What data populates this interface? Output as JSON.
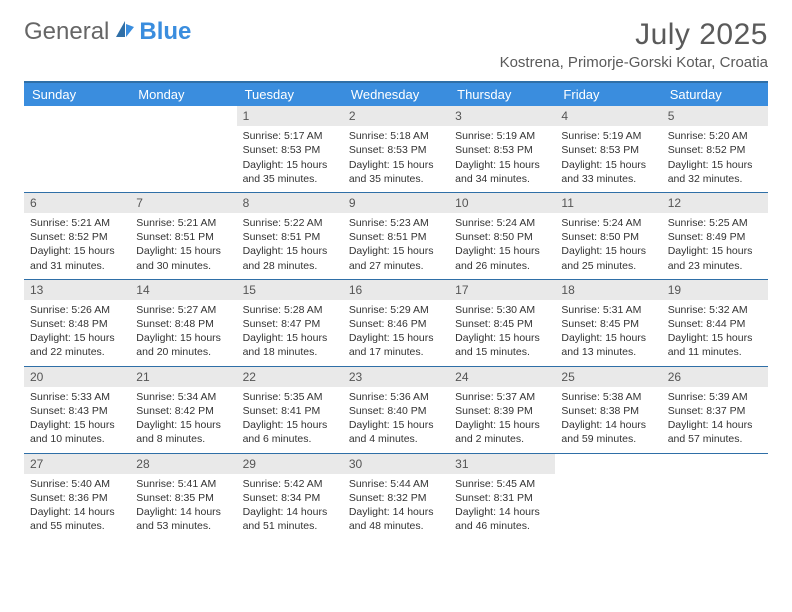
{
  "brand": {
    "part1": "General",
    "part2": "Blue"
  },
  "title": "July 2025",
  "location": "Kostrena, Primorje-Gorski Kotar, Croatia",
  "colors": {
    "header_bg": "#3a8dde",
    "header_text": "#ffffff",
    "rule": "#2f6fa7",
    "daynum_bg": "#e9e9e9",
    "body_text": "#333333",
    "title_text": "#5a5a5a"
  },
  "day_names": [
    "Sunday",
    "Monday",
    "Tuesday",
    "Wednesday",
    "Thursday",
    "Friday",
    "Saturday"
  ],
  "weeks": [
    [
      null,
      null,
      {
        "n": "1",
        "sunrise": "5:17 AM",
        "sunset": "8:53 PM",
        "daylight": "15 hours and 35 minutes."
      },
      {
        "n": "2",
        "sunrise": "5:18 AM",
        "sunset": "8:53 PM",
        "daylight": "15 hours and 35 minutes."
      },
      {
        "n": "3",
        "sunrise": "5:19 AM",
        "sunset": "8:53 PM",
        "daylight": "15 hours and 34 minutes."
      },
      {
        "n": "4",
        "sunrise": "5:19 AM",
        "sunset": "8:53 PM",
        "daylight": "15 hours and 33 minutes."
      },
      {
        "n": "5",
        "sunrise": "5:20 AM",
        "sunset": "8:52 PM",
        "daylight": "15 hours and 32 minutes."
      }
    ],
    [
      {
        "n": "6",
        "sunrise": "5:21 AM",
        "sunset": "8:52 PM",
        "daylight": "15 hours and 31 minutes."
      },
      {
        "n": "7",
        "sunrise": "5:21 AM",
        "sunset": "8:51 PM",
        "daylight": "15 hours and 30 minutes."
      },
      {
        "n": "8",
        "sunrise": "5:22 AM",
        "sunset": "8:51 PM",
        "daylight": "15 hours and 28 minutes."
      },
      {
        "n": "9",
        "sunrise": "5:23 AM",
        "sunset": "8:51 PM",
        "daylight": "15 hours and 27 minutes."
      },
      {
        "n": "10",
        "sunrise": "5:24 AM",
        "sunset": "8:50 PM",
        "daylight": "15 hours and 26 minutes."
      },
      {
        "n": "11",
        "sunrise": "5:24 AM",
        "sunset": "8:50 PM",
        "daylight": "15 hours and 25 minutes."
      },
      {
        "n": "12",
        "sunrise": "5:25 AM",
        "sunset": "8:49 PM",
        "daylight": "15 hours and 23 minutes."
      }
    ],
    [
      {
        "n": "13",
        "sunrise": "5:26 AM",
        "sunset": "8:48 PM",
        "daylight": "15 hours and 22 minutes."
      },
      {
        "n": "14",
        "sunrise": "5:27 AM",
        "sunset": "8:48 PM",
        "daylight": "15 hours and 20 minutes."
      },
      {
        "n": "15",
        "sunrise": "5:28 AM",
        "sunset": "8:47 PM",
        "daylight": "15 hours and 18 minutes."
      },
      {
        "n": "16",
        "sunrise": "5:29 AM",
        "sunset": "8:46 PM",
        "daylight": "15 hours and 17 minutes."
      },
      {
        "n": "17",
        "sunrise": "5:30 AM",
        "sunset": "8:45 PM",
        "daylight": "15 hours and 15 minutes."
      },
      {
        "n": "18",
        "sunrise": "5:31 AM",
        "sunset": "8:45 PM",
        "daylight": "15 hours and 13 minutes."
      },
      {
        "n": "19",
        "sunrise": "5:32 AM",
        "sunset": "8:44 PM",
        "daylight": "15 hours and 11 minutes."
      }
    ],
    [
      {
        "n": "20",
        "sunrise": "5:33 AM",
        "sunset": "8:43 PM",
        "daylight": "15 hours and 10 minutes."
      },
      {
        "n": "21",
        "sunrise": "5:34 AM",
        "sunset": "8:42 PM",
        "daylight": "15 hours and 8 minutes."
      },
      {
        "n": "22",
        "sunrise": "5:35 AM",
        "sunset": "8:41 PM",
        "daylight": "15 hours and 6 minutes."
      },
      {
        "n": "23",
        "sunrise": "5:36 AM",
        "sunset": "8:40 PM",
        "daylight": "15 hours and 4 minutes."
      },
      {
        "n": "24",
        "sunrise": "5:37 AM",
        "sunset": "8:39 PM",
        "daylight": "15 hours and 2 minutes."
      },
      {
        "n": "25",
        "sunrise": "5:38 AM",
        "sunset": "8:38 PM",
        "daylight": "14 hours and 59 minutes."
      },
      {
        "n": "26",
        "sunrise": "5:39 AM",
        "sunset": "8:37 PM",
        "daylight": "14 hours and 57 minutes."
      }
    ],
    [
      {
        "n": "27",
        "sunrise": "5:40 AM",
        "sunset": "8:36 PM",
        "daylight": "14 hours and 55 minutes."
      },
      {
        "n": "28",
        "sunrise": "5:41 AM",
        "sunset": "8:35 PM",
        "daylight": "14 hours and 53 minutes."
      },
      {
        "n": "29",
        "sunrise": "5:42 AM",
        "sunset": "8:34 PM",
        "daylight": "14 hours and 51 minutes."
      },
      {
        "n": "30",
        "sunrise": "5:44 AM",
        "sunset": "8:32 PM",
        "daylight": "14 hours and 48 minutes."
      },
      {
        "n": "31",
        "sunrise": "5:45 AM",
        "sunset": "8:31 PM",
        "daylight": "14 hours and 46 minutes."
      },
      null,
      null
    ]
  ],
  "labels": {
    "sunrise_prefix": "Sunrise: ",
    "sunset_prefix": "Sunset: ",
    "daylight_prefix": "Daylight: "
  }
}
